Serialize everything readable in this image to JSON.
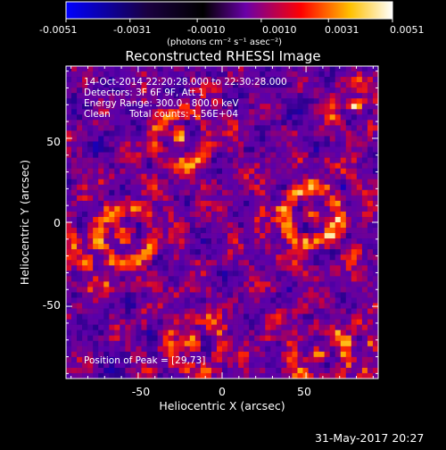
{
  "colorbar": {
    "tick_labels": [
      "-0.0051",
      "-0.0031",
      "-0.0010",
      "0.0010",
      "0.0031",
      "0.0051"
    ],
    "unit_label": "(photons cm⁻² s⁻¹ asec⁻²)",
    "colors": [
      "#0000ff",
      "#1a0040",
      "#000000",
      "#6a00a8",
      "#ff0000",
      "#ffc000",
      "#ffffff"
    ]
  },
  "title": "Reconstructed RHESSI Image",
  "info": {
    "line1": "14-Oct-2014 22:20:28.000 to 22:30:28.000",
    "line2": "Detectors: 3F 6F 9F, Att 1",
    "line3": "Energy Range: 300.0 - 800.0 keV",
    "line4_a": "Clean",
    "line4_b": "Total counts: 1.56E+04"
  },
  "peak_label": "Position of Peak = [29,73]",
  "axes": {
    "xlabel": "Heliocentric X (arcsec)",
    "ylabel": "Heliocentric Y (arcsec)",
    "x_ticks": [
      "-50",
      "0",
      "50"
    ],
    "y_ticks": [
      "50",
      "0",
      "-50"
    ],
    "x_tick_values": [
      -50,
      0,
      50
    ],
    "y_tick_values": [
      50,
      0,
      -50
    ],
    "xlim": [
      -93,
      93
    ],
    "ylim": [
      -93,
      93
    ]
  },
  "timestamp": "31-May-2017 20:27"
}
